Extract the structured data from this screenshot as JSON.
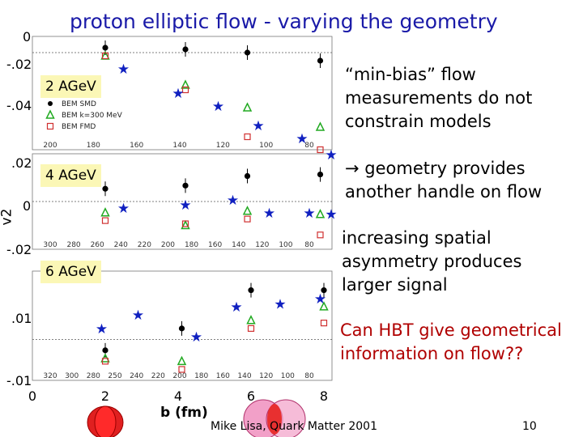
{
  "title": "proton elliptic flow - varying the geometry",
  "notes": [
    "“min-bias” flow measurements do not constrain models",
    "→ geometry provides another handle on flow",
    "increasing spatial asymmetry produces larger signal",
    "Can HBT give geometrical information on flow??"
  ],
  "footer": {
    "author": "Mike Lisa, Quark Matter 2001",
    "page": "10"
  },
  "colors": {
    "title": "#1a1aa8",
    "red_text": "#b00000",
    "energy_box": "#fbf7b6",
    "star": "#1020c0",
    "triangle": "#22aa22",
    "square": "#d03030"
  },
  "chart_data": {
    "type": "scatter",
    "ylabel": "v2",
    "xlabel": "b (fm)",
    "x_ticks": [
      "0",
      "2",
      "4",
      "6",
      "8"
    ],
    "x_range": [
      0,
      8
    ],
    "legend": [
      "BEM SMD",
      "BEM k=300 MeV",
      "BEM FMD"
    ],
    "panels": [
      {
        "label": "2 AGeV",
        "y_ticks": [
          "0",
          "-.02",
          "-.04"
        ],
        "y_range": [
          -0.06,
          0.01
        ],
        "top_ticks": [
          "200",
          "180",
          "160",
          "140",
          "120",
          "100",
          "80"
        ],
        "series": [
          {
            "name": "BEM SMD",
            "marker": "circle",
            "x": [
              2.0,
              4.2,
              5.9,
              7.9
            ],
            "y": [
              0.003,
              0.002,
              0.0,
              -0.005
            ]
          },
          {
            "name": "BEM k=300 MeV",
            "marker": "triangle",
            "x": [
              2.0,
              4.2,
              5.9,
              7.9
            ],
            "y": [
              -0.002,
              -0.02,
              -0.034,
              -0.046
            ]
          },
          {
            "name": "BEM FMD",
            "marker": "square",
            "x": [
              2.0,
              4.2,
              5.9,
              7.9
            ],
            "y": [
              -0.002,
              -0.023,
              -0.052,
              -0.06
            ]
          },
          {
            "name": "data",
            "marker": "star",
            "x": [
              2.5,
              4.0,
              5.1,
              6.2,
              7.4,
              8.2
            ],
            "y": [
              -0.01,
              -0.025,
              -0.033,
              -0.045,
              -0.053,
              -0.063
            ]
          }
        ]
      },
      {
        "label": "4 AGeV",
        "y_ticks": [
          ".02",
          "0",
          "-.02"
        ],
        "y_range": [
          -0.03,
          0.03
        ],
        "top_ticks": [
          "300",
          "280",
          "260",
          "240",
          "220",
          "200",
          "180",
          "160",
          "140",
          "120",
          "100",
          "80"
        ],
        "series": [
          {
            "name": "BEM SMD",
            "marker": "circle",
            "x": [
              2.0,
              4.2,
              5.9,
              7.9
            ],
            "y": [
              0.008,
              0.01,
              0.016,
              0.017
            ]
          },
          {
            "name": "BEM k=300 MeV",
            "marker": "triangle",
            "x": [
              2.0,
              4.2,
              5.9,
              7.9
            ],
            "y": [
              -0.007,
              -0.015,
              -0.006,
              -0.008
            ]
          },
          {
            "name": "BEM FMD",
            "marker": "square",
            "x": [
              2.0,
              4.2,
              5.9,
              7.9
            ],
            "y": [
              -0.012,
              -0.014,
              -0.011,
              -0.021
            ]
          },
          {
            "name": "data",
            "marker": "star",
            "x": [
              2.5,
              4.2,
              5.5,
              6.5,
              7.6,
              8.2
            ],
            "y": [
              -0.004,
              -0.002,
              0.001,
              -0.007,
              -0.007,
              -0.008
            ]
          }
        ]
      },
      {
        "label": "6 AGeV",
        "y_ticks": [
          ".01",
          "-.01"
        ],
        "y_range": [
          -0.015,
          0.025
        ],
        "top_ticks": [
          "320",
          "300",
          "280",
          "250",
          "240",
          "220",
          "200",
          "180",
          "160",
          "140",
          "120",
          "100",
          "80"
        ],
        "series": [
          {
            "name": "BEM SMD",
            "marker": "circle",
            "x": [
              2.0,
              4.1,
              6.0,
              8.0
            ],
            "y": [
              -0.004,
              0.004,
              0.018,
              0.018
            ]
          },
          {
            "name": "BEM k=300 MeV",
            "marker": "triangle",
            "x": [
              2.0,
              4.1,
              6.0,
              8.0
            ],
            "y": [
              -0.007,
              -0.008,
              0.007,
              0.012
            ]
          },
          {
            "name": "BEM FMD",
            "marker": "square",
            "x": [
              2.0,
              4.1,
              6.0,
              8.0
            ],
            "y": [
              -0.008,
              -0.011,
              0.004,
              0.006
            ]
          },
          {
            "name": "data",
            "marker": "star",
            "x": [
              1.9,
              2.9,
              4.5,
              5.6,
              6.8,
              7.9
            ],
            "y": [
              0.004,
              0.009,
              0.001,
              0.012,
              0.013,
              0.015
            ]
          }
        ]
      }
    ]
  }
}
